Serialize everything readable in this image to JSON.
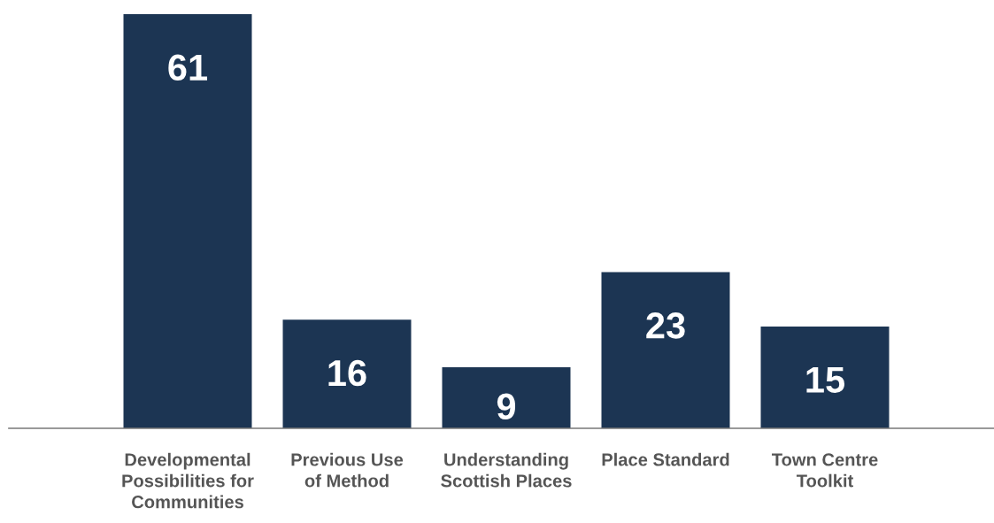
{
  "chart_data": {
    "type": "bar",
    "categories": [
      "Developmental\nPossibilities for\nCommunities",
      "Previous Use\nof Method",
      "Understanding\nScottish Places",
      "Place Standard",
      "Town Centre\nToolkit"
    ],
    "values": [
      61,
      16,
      9,
      23,
      15
    ],
    "color": "#1c3553",
    "data_labels": true,
    "grid": false,
    "legend": false
  }
}
